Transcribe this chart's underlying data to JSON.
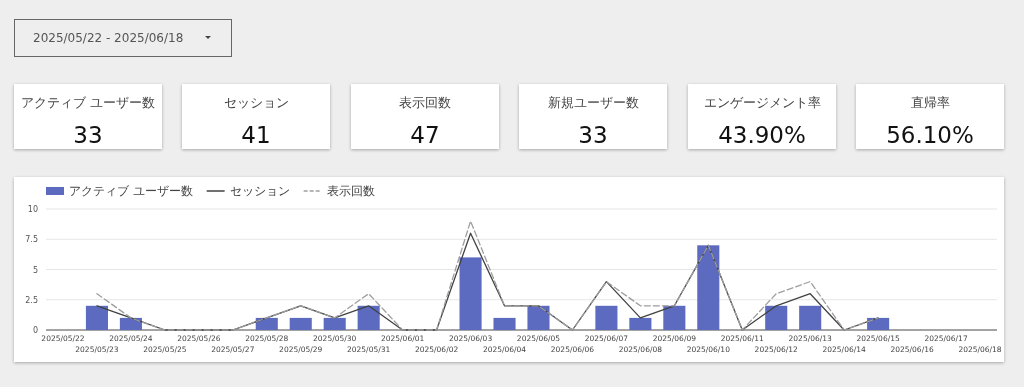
{
  "chart_data": [
    {
      "type": "other",
      "title": "2025/05/22 - 2025/06/18"
    },
    {
      "type": "other",
      "title": "アクティブ ユーザー数",
      "annotations": [
        "33"
      ]
    },
    {
      "type": "other",
      "title": "セッション",
      "annotations": [
        "41"
      ]
    },
    {
      "type": "other",
      "title": "表示回数",
      "annotations": [
        "47"
      ]
    },
    {
      "type": "other",
      "title": "新規ユーザー数",
      "annotations": [
        "33"
      ]
    },
    {
      "type": "other",
      "title": "エンゲージメント率",
      "annotations": [
        "43.90%"
      ]
    },
    {
      "type": "other",
      "title": "直帰率",
      "annotations": [
        "56.10%"
      ]
    },
    {
      "type": "bar",
      "categories": [
        "2025/05/22",
        "2025/05/23",
        "2025/05/24",
        "2025/05/25",
        "2025/05/26",
        "2025/05/27",
        "2025/05/28",
        "2025/05/29",
        "2025/05/30",
        "2025/05/31",
        "2025/06/01",
        "2025/06/02",
        "2025/06/03",
        "2025/06/04",
        "2025/06/05",
        "2025/06/06",
        "2025/06/07",
        "2025/06/08",
        "2025/06/09",
        "2025/06/10",
        "2025/06/11",
        "2025/06/12",
        "2025/06/13",
        "2025/06/14",
        "2025/06/15",
        "2025/06/16",
        "2025/06/17",
        "2025/06/18"
      ],
      "series": [
        {
          "name": "アクティブ ユーザー数",
          "color": "#5c6bc0",
          "values": [
            null,
            2,
            1,
            0,
            0,
            0,
            1,
            1,
            1,
            2,
            0,
            0,
            6,
            1,
            2,
            0,
            2,
            1,
            2,
            7,
            0,
            2,
            2,
            0,
            1,
            null,
            null,
            null
          ]
        },
        {
          "name": "セッション",
          "type": "line",
          "color": "#424242",
          "line_style": "solid",
          "values": [
            null,
            2,
            1,
            0,
            0,
            0,
            1,
            2,
            1,
            2,
            0,
            0,
            8,
            2,
            2,
            0,
            4,
            1,
            2,
            7,
            0,
            2,
            3,
            0,
            1,
            null,
            null,
            null
          ]
        },
        {
          "name": "表示回数",
          "type": "line",
          "color": "#9e9e9e",
          "line_style": "dashed",
          "values": [
            null,
            3,
            1,
            0,
            0,
            0,
            1,
            2,
            1,
            3,
            0,
            0,
            9,
            2,
            2,
            0,
            4,
            2,
            2,
            7,
            0,
            3,
            4,
            0,
            1,
            null,
            null,
            null
          ]
        }
      ],
      "ylim": [
        0,
        10
      ],
      "yticks": [
        0,
        2.5,
        5,
        7.5,
        10
      ],
      "grid": "y",
      "legend": "top left"
    }
  ]
}
